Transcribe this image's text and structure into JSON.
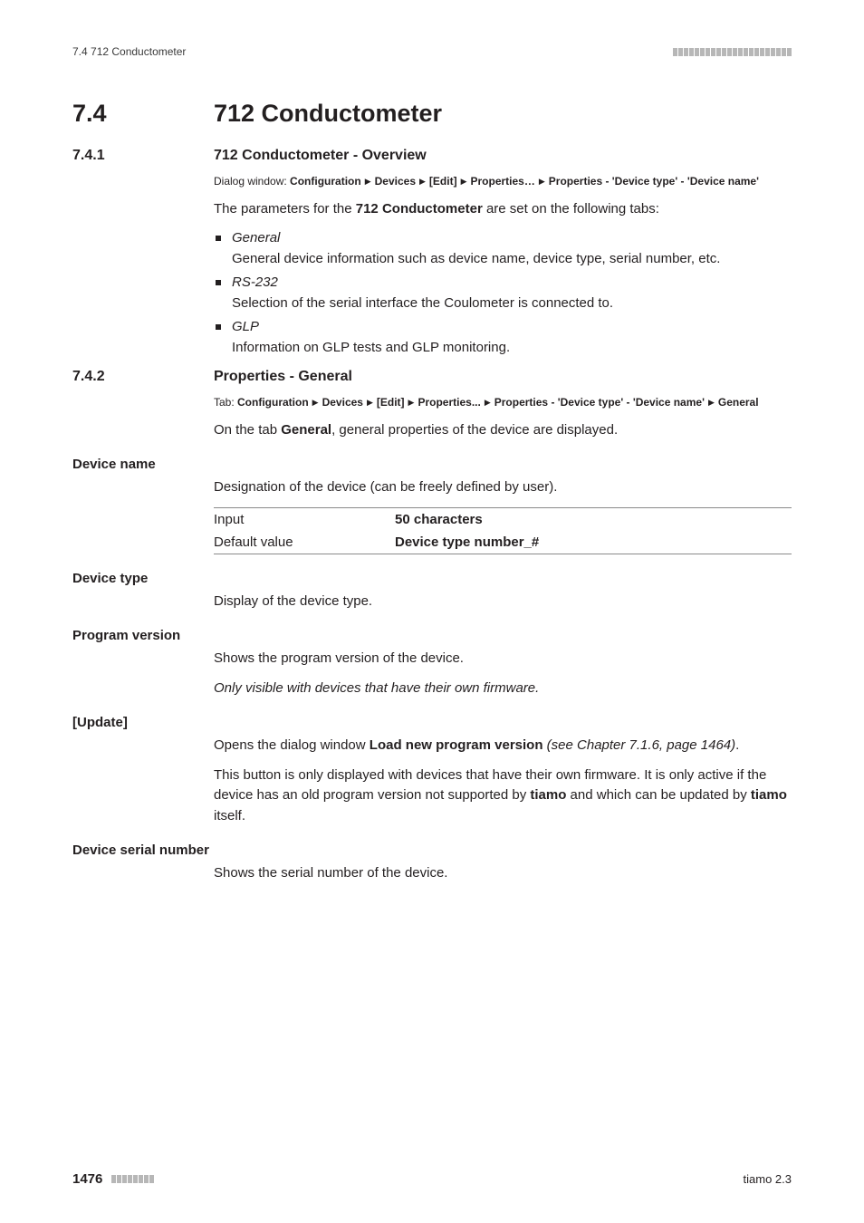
{
  "header": {
    "left": "7.4 712 Conductometer"
  },
  "h1": {
    "num": "7.4",
    "title": "712 Conductometer"
  },
  "s741": {
    "num": "7.4.1",
    "title": "712 Conductometer - Overview",
    "crumb_label": "Dialog window: ",
    "crumb": [
      "Configuration",
      "Devices",
      "[Edit]",
      "Properties…",
      "Properties - 'Device type' - 'Device name'"
    ],
    "para_pre": "The parameters for the ",
    "para_bold": "712 Conductometer",
    "para_post": " are set on the following tabs:",
    "items": [
      {
        "head": "General",
        "body": "General device information such as device name, device type, serial number, etc."
      },
      {
        "head": "RS-232",
        "body": "Selection of the serial interface the Coulometer is connected to."
      },
      {
        "head": "GLP",
        "body": "Information on GLP tests and GLP monitoring."
      }
    ]
  },
  "s742": {
    "num": "7.4.2",
    "title": "Properties - General",
    "crumb_label": "Tab: ",
    "crumb": [
      "Configuration",
      "Devices",
      "[Edit]",
      "Properties...",
      "Properties - 'Device type' - 'Device name'",
      "General"
    ],
    "intro_pre": "On the tab ",
    "intro_bold": "General",
    "intro_post": ", general properties of the device are displayed."
  },
  "fields": {
    "device_name": {
      "label": "Device name",
      "desc": "Designation of the device (can be freely defined by user).",
      "rows": [
        {
          "k": "Input",
          "v": "50 characters"
        },
        {
          "k": "Default value",
          "v": "Device type number_#"
        }
      ]
    },
    "device_type": {
      "label": "Device type",
      "desc": "Display of the device type."
    },
    "program_version": {
      "label": "Program version",
      "desc": "Shows the program version of the device.",
      "note": "Only visible with devices that have their own firmware."
    },
    "update": {
      "label": "[Update]",
      "p1_pre": "Opens the dialog window ",
      "p1_bold": "Load new program version",
      "p1_post_i": " (see Chapter 7.1.6, page 1464)",
      "p1_end": ".",
      "p2_a": "This button is only displayed with devices that have their own firmware. It is only active if the device has an old program version not supported by ",
      "p2_b1": "tiamo",
      "p2_b": " and which can be updated by ",
      "p2_b2": "tiamo",
      "p2_c": " itself."
    },
    "serial": {
      "label": "Device serial number",
      "desc": "Shows the serial number of the device."
    }
  },
  "footer": {
    "page": "1476",
    "right": "tiamo 2.3"
  }
}
